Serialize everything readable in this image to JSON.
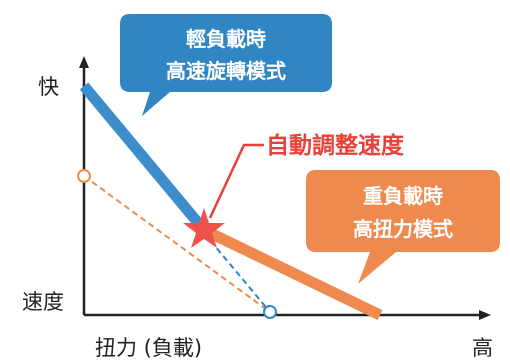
{
  "axes": {
    "y_top_label": "快",
    "y_bottom_label": "速度",
    "x_left_label": "扭力 (負載)",
    "x_right_label": "高"
  },
  "callouts": {
    "light_load": {
      "line1": "輕負載時",
      "line2": "高速旋轉模式",
      "color": "#2f86c3"
    },
    "heavy_load": {
      "line1": "重負載時",
      "line2": "高扭力模式",
      "color": "#ee8a4d"
    },
    "auto_adjust": {
      "text": "自動調整速度",
      "color": "#e8413a"
    }
  },
  "colors": {
    "speed_line": "#3d8ccc",
    "torque_line": "#ee8a4d",
    "star": "#f0524b",
    "axis": "#222222"
  },
  "icons": {
    "star": "star-icon",
    "arrow": "arrow-head-icon"
  }
}
